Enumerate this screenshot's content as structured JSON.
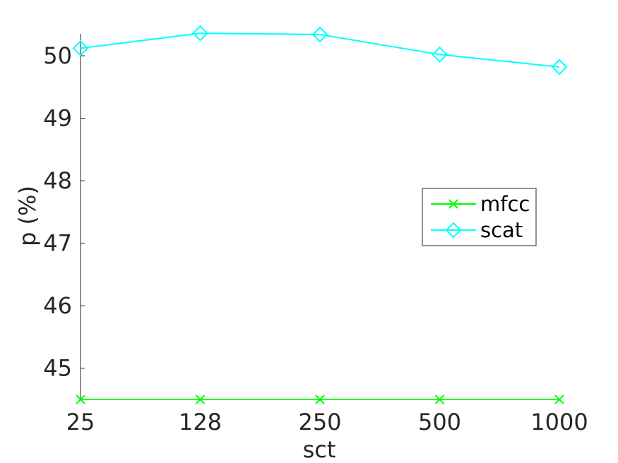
{
  "chart_data": {
    "type": "line",
    "categories": [
      "25",
      "128",
      "250",
      "500",
      "1000"
    ],
    "xlabel": "sct",
    "ylabel": "p (%)",
    "ylim": [
      44.5,
      50.35
    ],
    "yticks": [
      "45",
      "46",
      "47",
      "48",
      "49",
      "50"
    ],
    "grid": false,
    "legend_position": "right",
    "series": [
      {
        "name": "mfcc",
        "values": [
          44.5,
          44.5,
          44.5,
          44.5,
          44.5
        ],
        "color": "#00ff00",
        "marker": "x"
      },
      {
        "name": "scat",
        "values": [
          50.12,
          50.36,
          50.34,
          50.02,
          49.82
        ],
        "color": "#00ffff",
        "marker": "diamond"
      }
    ]
  }
}
